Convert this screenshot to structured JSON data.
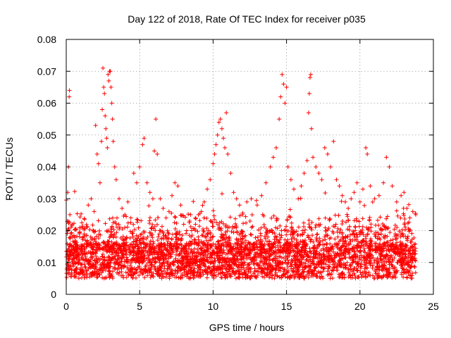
{
  "chart_data": {
    "type": "scatter",
    "title": "Day 122 of 2018, Rate Of TEC Index for receiver p035",
    "xlabel": "GPS time / hours",
    "ylabel": "ROTI / TECUs",
    "xlim": [
      0,
      25
    ],
    "ylim": [
      0,
      0.08
    ],
    "xticks": [
      0,
      5,
      10,
      15,
      20,
      25
    ],
    "xtick_labels": [
      "0",
      "5",
      "10",
      "15",
      "20",
      "25"
    ],
    "yticks": [
      0,
      0.01,
      0.02,
      0.03,
      0.04,
      0.05,
      0.06,
      0.07,
      0.08
    ],
    "ytick_labels": [
      "0",
      "0.01",
      "0.02",
      "0.03",
      "0.04",
      "0.05",
      "0.06",
      "0.07",
      "0.08"
    ],
    "grid": true,
    "marker": "plus",
    "color": "#ff0000",
    "series": [
      {
        "name": "ROTI",
        "points": [
          [
            0.1,
            0.032
          ],
          [
            0.15,
            0.04
          ],
          [
            0.2,
            0.062
          ],
          [
            0.22,
            0.064
          ],
          [
            0.25,
            0.025
          ],
          [
            0.3,
            0.018
          ],
          [
            0.4,
            0.022
          ],
          [
            0.5,
            0.015
          ],
          [
            0.7,
            0.012
          ],
          [
            0.9,
            0.019
          ],
          [
            1.1,
            0.021
          ],
          [
            1.3,
            0.017
          ],
          [
            1.5,
            0.028
          ],
          [
            1.7,
            0.03
          ],
          [
            1.9,
            0.026
          ],
          [
            2.0,
            0.053
          ],
          [
            2.1,
            0.044
          ],
          [
            2.2,
            0.041
          ],
          [
            2.3,
            0.035
          ],
          [
            2.4,
            0.048
          ],
          [
            2.45,
            0.058
          ],
          [
            2.5,
            0.071
          ],
          [
            2.55,
            0.065
          ],
          [
            2.6,
            0.063
          ],
          [
            2.65,
            0.056
          ],
          [
            2.7,
            0.052
          ],
          [
            2.75,
            0.049
          ],
          [
            2.8,
            0.046
          ],
          [
            2.85,
            0.069
          ],
          [
            2.9,
            0.067
          ],
          [
            2.95,
            0.07
          ],
          [
            3.0,
            0.07
          ],
          [
            3.05,
            0.065
          ],
          [
            3.1,
            0.06
          ],
          [
            3.15,
            0.055
          ],
          [
            3.2,
            0.048
          ],
          [
            3.3,
            0.04
          ],
          [
            3.4,
            0.036
          ],
          [
            3.6,
            0.03
          ],
          [
            3.8,
            0.027
          ],
          [
            4.0,
            0.025
          ],
          [
            4.2,
            0.029
          ],
          [
            4.4,
            0.024
          ],
          [
            4.6,
            0.038
          ],
          [
            4.8,
            0.035
          ],
          [
            5.0,
            0.04
          ],
          [
            5.2,
            0.047
          ],
          [
            5.3,
            0.049
          ],
          [
            5.5,
            0.035
          ],
          [
            5.7,
            0.032
          ],
          [
            5.9,
            0.03
          ],
          [
            6.0,
            0.045
          ],
          [
            6.1,
            0.055
          ],
          [
            6.2,
            0.044
          ],
          [
            6.4,
            0.03
          ],
          [
            6.6,
            0.027
          ],
          [
            6.8,
            0.024
          ],
          [
            7.0,
            0.026
          ],
          [
            7.2,
            0.031
          ],
          [
            7.4,
            0.035
          ],
          [
            7.6,
            0.034
          ],
          [
            7.8,
            0.028
          ],
          [
            8.0,
            0.022
          ],
          [
            8.2,
            0.02
          ],
          [
            8.5,
            0.018
          ],
          [
            8.8,
            0.022
          ],
          [
            9.0,
            0.025
          ],
          [
            9.2,
            0.026
          ],
          [
            9.4,
            0.029
          ],
          [
            9.6,
            0.033
          ],
          [
            9.8,
            0.036
          ],
          [
            10.0,
            0.041
          ],
          [
            10.1,
            0.044
          ],
          [
            10.2,
            0.047
          ],
          [
            10.3,
            0.05
          ],
          [
            10.4,
            0.054
          ],
          [
            10.5,
            0.055
          ],
          [
            10.6,
            0.052
          ],
          [
            10.7,
            0.049
          ],
          [
            10.8,
            0.046
          ],
          [
            10.9,
            0.057
          ],
          [
            11.0,
            0.044
          ],
          [
            11.2,
            0.038
          ],
          [
            11.4,
            0.032
          ],
          [
            11.6,
            0.03
          ],
          [
            11.8,
            0.028
          ],
          [
            12.0,
            0.025
          ],
          [
            12.3,
            0.029
          ],
          [
            12.6,
            0.03
          ],
          [
            13.0,
            0.028
          ],
          [
            13.3,
            0.031
          ],
          [
            13.6,
            0.035
          ],
          [
            13.9,
            0.04
          ],
          [
            14.1,
            0.043
          ],
          [
            14.3,
            0.046
          ],
          [
            14.5,
            0.055
          ],
          [
            14.6,
            0.062
          ],
          [
            14.7,
            0.069
          ],
          [
            14.8,
            0.066
          ],
          [
            14.9,
            0.06
          ],
          [
            15.0,
            0.065
          ],
          [
            15.1,
            0.04
          ],
          [
            15.3,
            0.036
          ],
          [
            15.5,
            0.033
          ],
          [
            15.8,
            0.03
          ],
          [
            16.0,
            0.034
          ],
          [
            16.2,
            0.038
          ],
          [
            16.4,
            0.042
          ],
          [
            16.5,
            0.057
          ],
          [
            16.55,
            0.063
          ],
          [
            16.6,
            0.068
          ],
          [
            16.65,
            0.069
          ],
          [
            16.7,
            0.052
          ],
          [
            16.8,
            0.043
          ],
          [
            17.0,
            0.04
          ],
          [
            17.2,
            0.038
          ],
          [
            17.4,
            0.036
          ],
          [
            17.6,
            0.046
          ],
          [
            17.8,
            0.044
          ],
          [
            18.0,
            0.04
          ],
          [
            18.2,
            0.048
          ],
          [
            18.4,
            0.036
          ],
          [
            18.6,
            0.034
          ],
          [
            18.8,
            0.031
          ],
          [
            19.0,
            0.029
          ],
          [
            19.2,
            0.027
          ],
          [
            19.4,
            0.03
          ],
          [
            19.6,
            0.032
          ],
          [
            19.8,
            0.035
          ],
          [
            20.0,
            0.029
          ],
          [
            20.2,
            0.033
          ],
          [
            20.4,
            0.046
          ],
          [
            20.5,
            0.044
          ],
          [
            20.7,
            0.034
          ],
          [
            21.0,
            0.03
          ],
          [
            21.3,
            0.031
          ],
          [
            21.6,
            0.035
          ],
          [
            21.8,
            0.043
          ],
          [
            22.0,
            0.04
          ],
          [
            22.2,
            0.034
          ],
          [
            22.5,
            0.029
          ],
          [
            22.8,
            0.031
          ],
          [
            23.0,
            0.032
          ],
          [
            23.2,
            0.027
          ],
          [
            23.4,
            0.024
          ],
          [
            23.6,
            0.026
          ],
          [
            23.8,
            0.025
          ]
        ]
      }
    ]
  }
}
